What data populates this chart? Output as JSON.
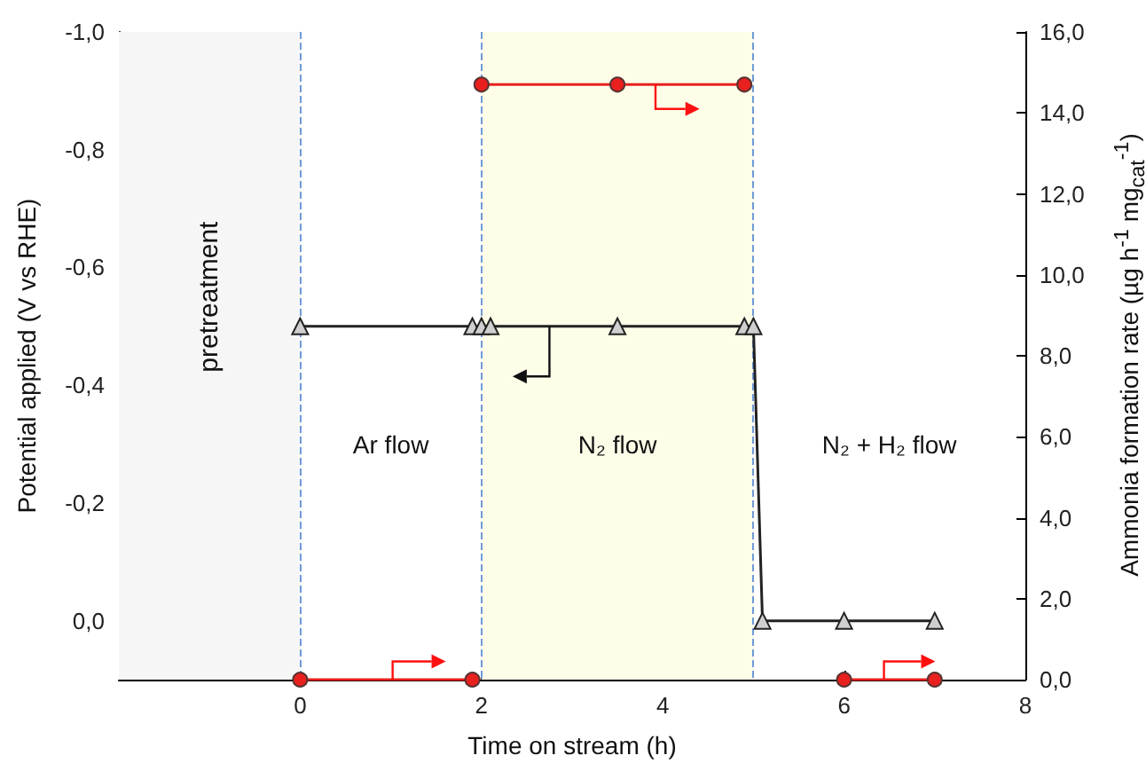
{
  "chart_data": {
    "type": "line",
    "xlabel": "Time on stream (h)",
    "ylabel": "Potential applied (V vs RHE)",
    "y2label": "Ammonia formation rate (µg h$^{-1}$ mg$_{cat}$$^{-1}$)",
    "xlim": [
      -2,
      8
    ],
    "xticks": [
      0,
      2,
      4,
      6,
      8
    ],
    "ylim": [
      0.1,
      -1.0
    ],
    "yticks": [
      {
        "value": -1.0,
        "label": "-1,0"
      },
      {
        "value": -0.8,
        "label": "-0,8"
      },
      {
        "value": -0.6,
        "label": "-0,6"
      },
      {
        "value": -0.4,
        "label": "-0,4"
      },
      {
        "value": -0.2,
        "label": "-0,2"
      },
      {
        "value": 0,
        "label": "0,0"
      }
    ],
    "y2lim": [
      0,
      16
    ],
    "y2ticks": [
      {
        "value": 0,
        "label": "0,0"
      },
      {
        "value": 2,
        "label": "2,0"
      },
      {
        "value": 4,
        "label": "4,0"
      },
      {
        "value": 6,
        "label": "6,0"
      },
      {
        "value": 8,
        "label": "8,0"
      },
      {
        "value": 10,
        "label": "10,0"
      },
      {
        "value": 12,
        "label": "12,0"
      },
      {
        "value": 14,
        "label": "14,0"
      },
      {
        "value": 16,
        "label": "16,0"
      }
    ],
    "series": [
      {
        "color": "#222222",
        "marker": "triangle",
        "x": [
          0,
          1.9,
          2.0,
          2.1,
          3.5,
          4.9,
          5.0,
          5.1,
          6,
          7
        ],
        "values": [
          -0.5,
          -0.5,
          -0.5,
          -0.5,
          -0.5,
          -0.5,
          -0.5,
          0.0,
          0.0,
          0.0
        ]
      },
      {
        "axis": "y2",
        "color": "#e8201e",
        "marker": "circle",
        "x": [
          0,
          1.9
        ],
        "values": [
          0,
          0
        ]
      },
      {
        "axis": "y2",
        "color": "#e8201e",
        "marker": "circle",
        "x": [
          2.0,
          3.5,
          4.9
        ],
        "values": [
          14.7,
          14.7,
          14.7
        ]
      },
      {
        "axis": "y2",
        "color": "#e8201e",
        "marker": "circle",
        "x": [
          6,
          7
        ],
        "values": [
          0,
          0
        ]
      }
    ],
    "bands": [
      {
        "axis": "x",
        "from": -2,
        "to": 0,
        "label": "pretreatment",
        "color": "#f6f6f6"
      },
      {
        "axis": "x",
        "from": 2,
        "to": 5,
        "color": "#fdfde8"
      }
    ],
    "ref_lines": [
      {
        "axis": "x",
        "value": 0,
        "color": "#6f9bd8",
        "line_style": "dashed"
      },
      {
        "axis": "x",
        "value": 2,
        "color": "#6f9bd8",
        "line_style": "dashed"
      },
      {
        "axis": "x",
        "value": 5,
        "color": "#6f9bd8",
        "line_style": "dashed"
      }
    ],
    "annotations": [
      "Ar flow",
      "N₂ flow",
      "N₂ + H₂ flow"
    ],
    "grid": false
  }
}
